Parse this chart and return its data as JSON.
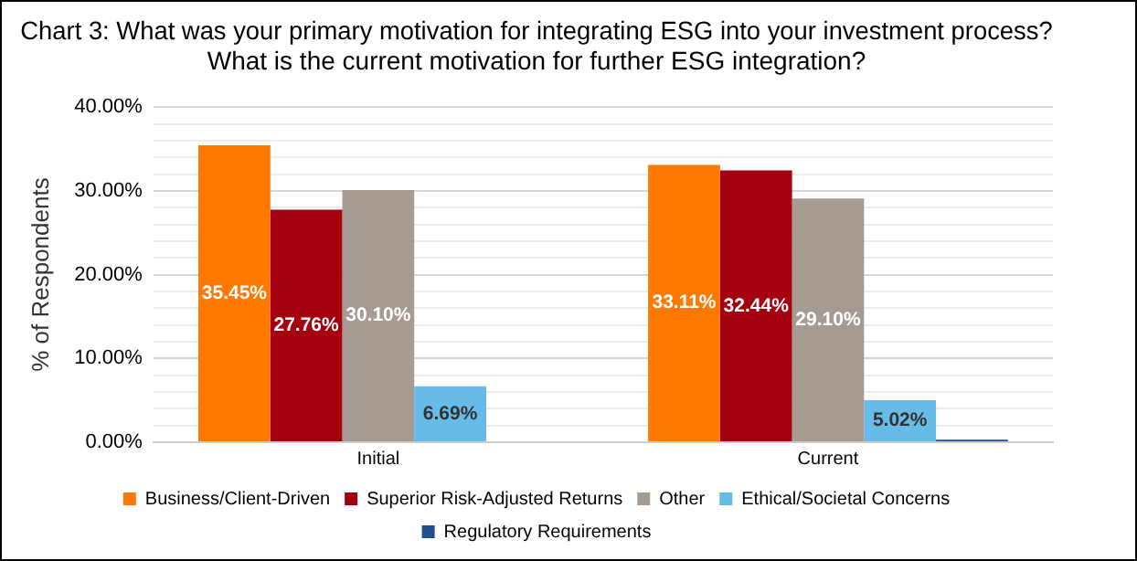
{
  "chart_data": {
    "type": "bar",
    "title": "Chart 3: What was your primary motivation for integrating ESG into your investment process? What is the current motivation for further ESG integration?",
    "ylabel": "% of Respondents",
    "categories": [
      "Initial",
      "Current"
    ],
    "series": [
      {
        "name": "Business/Client-Driven",
        "color": "#ff7900",
        "values": [
          35.45,
          33.11
        ],
        "value_labels": [
          "35.45%",
          "33.11%"
        ]
      },
      {
        "name": "Superior Risk-Adjusted Returns",
        "color": "#a50010",
        "values": [
          27.76,
          32.44
        ],
        "value_labels": [
          "27.76%",
          "32.44%"
        ]
      },
      {
        "name": "Other",
        "color": "#a59b92",
        "values": [
          30.1,
          29.1
        ],
        "value_labels": [
          "30.10%",
          "29.10%"
        ]
      },
      {
        "name": "Ethical/Societal Concerns",
        "color": "#66bbe9",
        "values": [
          6.69,
          5.02
        ],
        "value_labels": [
          "6.69%",
          "5.02%"
        ]
      },
      {
        "name": "Regulatory Requirements",
        "color": "#1f4e8c",
        "values": [
          0,
          0.3
        ],
        "value_labels": [
          null,
          null
        ]
      }
    ],
    "ylim": [
      0,
      40
    ],
    "yticks": [
      {
        "value": 0,
        "label": "0.00%"
      },
      {
        "value": 2,
        "label": null
      },
      {
        "value": 4,
        "label": null
      },
      {
        "value": 6,
        "label": null
      },
      {
        "value": 8,
        "label": null
      },
      {
        "value": 10,
        "label": "10.00%"
      },
      {
        "value": 12,
        "label": null
      },
      {
        "value": 14,
        "label": null
      },
      {
        "value": 16,
        "label": null
      },
      {
        "value": 18,
        "label": null
      },
      {
        "value": 20,
        "label": "20.00%"
      },
      {
        "value": 22,
        "label": null
      },
      {
        "value": 24,
        "label": null
      },
      {
        "value": 26,
        "label": null
      },
      {
        "value": 28,
        "label": null
      },
      {
        "value": 30,
        "label": "30.00%"
      },
      {
        "value": 32,
        "label": null
      },
      {
        "value": 34,
        "label": null
      },
      {
        "value": 36,
        "label": null
      },
      {
        "value": 38,
        "label": null
      },
      {
        "value": 40,
        "label": "40.00%"
      }
    ],
    "grid": "y",
    "legend": "bottom"
  }
}
